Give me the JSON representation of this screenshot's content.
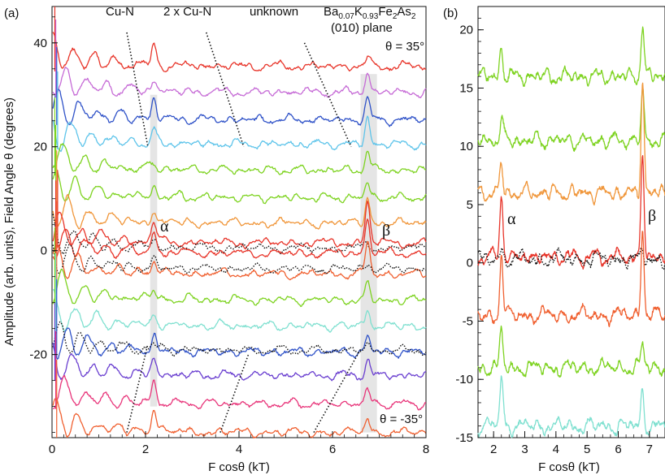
{
  "chart_data": [
    {
      "panel_label": "(a)",
      "type": "line",
      "xlabel": "F cosθ (kT)",
      "ylabel": "Amplitude (arb. units), Field Angle θ (degrees)",
      "xlim": [
        0,
        8
      ],
      "ylim": [
        -36,
        47
      ],
      "xticks": [
        0,
        2,
        4,
        6,
        8
      ],
      "yticks": [
        -20,
        0,
        20,
        40
      ],
      "annotations": {
        "cu_n": "Cu-N",
        "two_cu_n": "2 x Cu-N",
        "unknown": "unknown",
        "sample_a": "Ba",
        "sample_b": "0.07",
        "sample_c": "K",
        "sample_d": "0.93",
        "sample_e": "Fe",
        "sample_f": "2",
        "sample_g": "As",
        "sample_h": "2",
        "plane": "(010) plane",
        "theta_top": "θ = 35°",
        "theta_bottom": "θ = -35°",
        "alpha": "α",
        "beta": "β"
      },
      "peak_bands": [
        {
          "name": "alpha",
          "x": [
            2.1,
            2.25
          ],
          "y": [
            -30,
            30
          ]
        },
        {
          "name": "beta",
          "x": [
            6.6,
            6.95
          ],
          "y": [
            -35,
            34
          ]
        }
      ],
      "guide_lines": [
        {
          "name": "cu-n-upper",
          "points": [
            [
              1.6,
              42
            ],
            [
              2.05,
              20
            ]
          ]
        },
        {
          "name": "two-cu-n-upper",
          "points": [
            [
              3.3,
              42
            ],
            [
              4.1,
              20
            ]
          ]
        },
        {
          "name": "unknown-upper",
          "points": [
            [
              5.4,
              40
            ],
            [
              6.4,
              20
            ]
          ]
        },
        {
          "name": "cu-n-lower",
          "points": [
            [
              1.6,
              -35
            ],
            [
              2.05,
              -18
            ]
          ]
        },
        {
          "name": "two-cu-n-lower",
          "points": [
            [
              3.6,
              -35
            ],
            [
              4.2,
              -20
            ]
          ]
        },
        {
          "name": "unknown-lower",
          "points": [
            [
              5.6,
              -35
            ],
            [
              6.6,
              -19
            ]
          ]
        }
      ],
      "series": [
        {
          "name": "θ=35",
          "offset": 35.5,
          "color": "#e8352a",
          "alpha_amp": 3.5,
          "beta_amp": 1.5
        },
        {
          "name": "θ=30",
          "offset": 30.5,
          "color": "#c66bd6",
          "alpha_amp": 2.5,
          "beta_amp": 4
        },
        {
          "name": "θ=25",
          "offset": 25.2,
          "color": "#2f52c8",
          "alpha_amp": 4,
          "beta_amp": 4
        },
        {
          "name": "θ=20",
          "offset": 20.5,
          "color": "#5ec4ea",
          "alpha_amp": 2,
          "beta_amp": 5
        },
        {
          "name": "θ=15",
          "offset": 15.5,
          "color": "#7ed321",
          "alpha_amp": 1.5,
          "beta_amp": 4
        },
        {
          "name": "θ=10",
          "offset": 10.2,
          "color": "#7ed321",
          "alpha_amp": 1.5,
          "beta_amp": 3
        },
        {
          "name": "θ=5",
          "offset": 5.3,
          "color": "#f0963a",
          "alpha_amp": 2,
          "beta_amp": 5
        },
        {
          "name": "θ=0 (a)",
          "offset": 1.5,
          "color": "#e8352a",
          "alpha_amp": 4,
          "beta_amp": 8
        },
        {
          "name": "θ=0 ref",
          "offset": 0.5,
          "color": "#111111",
          "alpha_amp": 1,
          "beta_amp": 1,
          "dotted": true
        },
        {
          "name": "θ=0 (b)",
          "offset": -0.5,
          "color": "#e8352a",
          "alpha_amp": 4,
          "beta_amp": 7
        },
        {
          "name": "θ=0 (c)",
          "offset": -4.5,
          "color": "#f06030",
          "alpha_amp": 3,
          "beta_amp": 6
        },
        {
          "name": "θ=-5 ref",
          "offset": -3.5,
          "color": "#111111",
          "alpha_amp": 1,
          "beta_amp": 1,
          "dotted": true
        },
        {
          "name": "θ=-10",
          "offset": -9.5,
          "color": "#7ed321",
          "alpha_amp": 2,
          "beta_amp": 3
        },
        {
          "name": "θ=-15",
          "offset": -14.5,
          "color": "#7fe0d0",
          "alpha_amp": 2,
          "beta_amp": 3
        },
        {
          "name": "θ=-20",
          "offset": -19.5,
          "color": "#2f52c8",
          "alpha_amp": 3,
          "beta_amp": 3
        },
        {
          "name": "θ=-20 ref",
          "offset": -19.2,
          "color": "#111111",
          "alpha_amp": 1,
          "beta_amp": 1,
          "dotted": true
        },
        {
          "name": "θ=-25",
          "offset": -24.0,
          "color": "#6a3fd0",
          "alpha_amp": 3,
          "beta_amp": 3
        },
        {
          "name": "θ=-30",
          "offset": -29.5,
          "color": "#e8357a",
          "alpha_amp": 4,
          "beta_amp": 3
        },
        {
          "name": "θ=-35",
          "offset": -35.0,
          "color": "#f06030",
          "alpha_amp": 5,
          "beta_amp": 3
        }
      ]
    },
    {
      "panel_label": "(b)",
      "type": "line",
      "xlabel": "F cosθ (kT)",
      "xlim": [
        1.5,
        7.5
      ],
      "ylim": [
        -15,
        22
      ],
      "xticks": [
        2,
        3,
        4,
        5,
        6,
        7
      ],
      "yticks": [
        -15,
        -10,
        -5,
        0,
        5,
        10,
        15,
        20
      ],
      "annotations": {
        "alpha": "α",
        "beta": "β"
      },
      "series": [
        {
          "name": "top green",
          "offset": 16.0,
          "color": "#7ed321",
          "alpha_amp": 2.5,
          "beta_amp": 4.5
        },
        {
          "name": "green 2",
          "offset": 10.5,
          "color": "#7ed321",
          "alpha_amp": 2,
          "beta_amp": 4
        },
        {
          "name": "orange",
          "offset": 6.0,
          "color": "#f0963a",
          "alpha_amp": 2.5,
          "beta_amp": 9.5
        },
        {
          "name": "red",
          "offset": 0.5,
          "color": "#e8352a",
          "alpha_amp": 5.5,
          "beta_amp": 8.5
        },
        {
          "name": "dotted ref",
          "offset": 0.3,
          "color": "#111111",
          "alpha_amp": 1.0,
          "beta_amp": 0.5,
          "dotted": true
        },
        {
          "name": "orange-red",
          "offset": -4.5,
          "color": "#f06030",
          "alpha_amp": 5,
          "beta_amp": 7.5
        },
        {
          "name": "green 3",
          "offset": -9.0,
          "color": "#7ed321",
          "alpha_amp": 3,
          "beta_amp": 2
        },
        {
          "name": "teal",
          "offset": -14.0,
          "color": "#7fe0d0",
          "alpha_amp": 4.5,
          "beta_amp": 3
        }
      ]
    }
  ]
}
